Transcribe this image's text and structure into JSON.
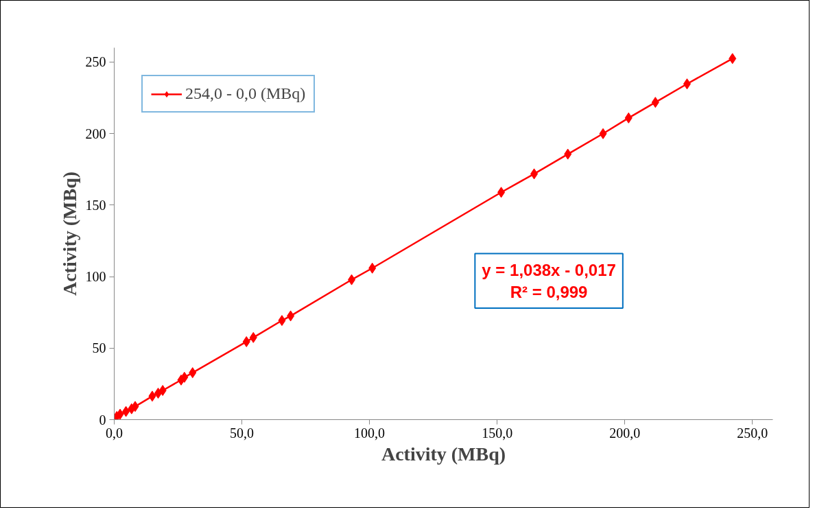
{
  "chart_data": {
    "type": "line",
    "xlabel": "Activity (MBq)",
    "ylabel": "Activity (MBq)",
    "x": [
      0,
      1.0,
      2.3,
      4.6,
      6.8,
      8.2,
      14.9,
      17.2,
      19.0,
      26.2,
      27.5,
      30.7,
      51.8,
      54.5,
      65.7,
      69.1,
      93.0,
      101.1,
      151.6,
      164.5,
      177.7,
      191.5,
      201.5,
      212.0,
      224.4,
      242.2
    ],
    "series": [
      {
        "name": "254,0 - 0,0 (MBq)",
        "color": "#ff0000",
        "values": [
          0.5,
          2.2,
          3.8,
          5.7,
          7.6,
          9.2,
          16.4,
          18.5,
          20.4,
          27.7,
          29.6,
          32.8,
          54.5,
          57.4,
          69.3,
          72.5,
          97.8,
          105.9,
          158.9,
          171.8,
          185.6,
          199.9,
          210.9,
          221.8,
          234.7,
          252.4
        ]
      }
    ],
    "xlim": [
      0,
      258
    ],
    "ylim": [
      0,
      260
    ],
    "xticks": [
      {
        "value": 0,
        "label": "0,0"
      },
      {
        "value": 50,
        "label": "50,0"
      },
      {
        "value": 100,
        "label": "100,0"
      },
      {
        "value": 150,
        "label": "150,0"
      },
      {
        "value": 200,
        "label": "200,0"
      },
      {
        "value": 250,
        "label": "250,0"
      }
    ],
    "yticks": [
      0,
      50,
      100,
      150,
      200,
      250
    ],
    "annotations": [
      "y = 1,038x - 0,017",
      "R² = 0,999"
    ],
    "grid": false,
    "legend": "top left",
    "marker": "diamond",
    "line_style": "solid"
  }
}
